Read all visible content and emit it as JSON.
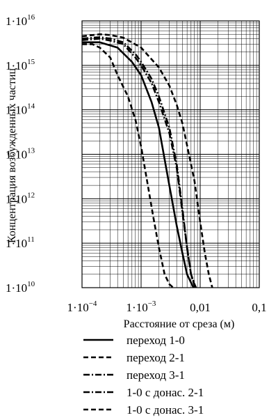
{
  "chart_data": {
    "type": "line",
    "title": "",
    "xlabel": "Расстояние от среза (м)",
    "ylabel": "Концентрация возбужденных частиц",
    "xscale": "log",
    "yscale": "log",
    "xlim": [
      0.0001,
      0.1
    ],
    "ylim": [
      10000000000.0,
      1e+16
    ],
    "grid": "on (major and minor)",
    "legend_position": "below plot",
    "x_ticks": [
      {
        "base": "1·10",
        "exp": "−4",
        "value": 0.0001
      },
      {
        "base": "1·10",
        "exp": "−3",
        "value": 0.001
      },
      {
        "base": "0,01",
        "exp": "",
        "value": 0.01
      },
      {
        "base": "0,1",
        "exp": "",
        "value": 0.1
      }
    ],
    "y_ticks": [
      {
        "base": "1·10",
        "exp": "16",
        "value": 1e+16
      },
      {
        "base": "1·10",
        "exp": "15",
        "value": 1000000000000000.0
      },
      {
        "base": "1·10",
        "exp": "14",
        "value": 100000000000000.0
      },
      {
        "base": "1·10",
        "exp": "13",
        "value": 10000000000000.0
      },
      {
        "base": "1·10",
        "exp": "12",
        "value": 1000000000000.0
      },
      {
        "base": "1·10",
        "exp": "11",
        "value": 100000000000.0
      },
      {
        "base": "1·10",
        "exp": "10",
        "value": 10000000000.0
      }
    ],
    "series": [
      {
        "name": "переход 1-0",
        "dash": "solid",
        "x": [
          0.0001,
          0.0002,
          0.0004,
          0.0007,
          0.001,
          0.0015,
          0.002,
          0.003,
          0.004,
          0.005,
          0.006,
          0.007,
          0.0077
        ],
        "y": [
          3300000000000000.0,
          3300000000000000.0,
          2500000000000000.0,
          1200000000000000.0,
          600000000000000.0,
          150000000000000.0,
          40000000000000.0,
          2000000000000.0,
          250000000000.0,
          60000000000.0,
          20000000000.0,
          13000000000.0,
          10000000000.0
        ]
      },
      {
        "name": "переход 2-1",
        "dash": "dash",
        "x": [
          0.0001,
          0.00015,
          0.0002,
          0.0003,
          0.0004,
          0.0006,
          0.0008,
          0.001,
          0.0013,
          0.0016,
          0.002,
          0.0025,
          0.003,
          0.0035
        ],
        "y": [
          3000000000000000.0,
          3000000000000000.0,
          2500000000000000.0,
          1500000000000000.0,
          600000000000000.0,
          200000000000000.0,
          60000000000000.0,
          15000000000000.0,
          2000000000000.0,
          400000000000.0,
          80000000000.0,
          20000000000.0,
          12000000000.0,
          10000000000.0
        ]
      },
      {
        "name": "переход 3-1",
        "dash": "dashdot",
        "x": [
          0.0001,
          0.0002,
          0.0003,
          0.0005,
          0.0008,
          0.001,
          0.0015,
          0.002,
          0.003,
          0.004,
          0.005,
          0.006,
          0.007,
          0.008,
          0.0085
        ],
        "y": [
          3700000000000000.0,
          4000000000000000.0,
          3600000000000000.0,
          3000000000000000.0,
          1500000000000000.0,
          1000000000000000.0,
          400000000000000.0,
          150000000000000.0,
          30000000000000.0,
          5000000000000.0,
          500000000000.0,
          80000000000.0,
          20000000000.0,
          12000000000.0,
          10000000000.0
        ]
      },
      {
        "name": "1-0 с донас. 2-1",
        "dash": "dashdot",
        "x": [
          0.0001,
          0.0002,
          0.0003,
          0.0005,
          0.0008,
          0.001,
          0.0015,
          0.002,
          0.003,
          0.004,
          0.005,
          0.006,
          0.007,
          0.0082
        ],
        "y": [
          4000000000000000.0,
          4300000000000000.0,
          4000000000000000.0,
          3300000000000000.0,
          1800000000000000.0,
          1200000000000000.0,
          500000000000000.0,
          200000000000000.0,
          40000000000000.0,
          6000000000000.0,
          600000000000.0,
          80000000000.0,
          20000000000.0,
          10000000000.0
        ]
      },
      {
        "name": "1-0 с донас. 3-1",
        "dash": "dash",
        "x": [
          0.0001,
          0.0002,
          0.0003,
          0.0005,
          0.001,
          0.002,
          0.003,
          0.004,
          0.005,
          0.006,
          0.008,
          0.01,
          0.012,
          0.014,
          0.016
        ],
        "y": [
          4500000000000000.0,
          5000000000000000.0,
          4800000000000000.0,
          4200000000000000.0,
          2500000000000000.0,
          900000000000000.0,
          350000000000000.0,
          130000000000000.0,
          50000000000000.0,
          16000000000000.0,
          2500000000000.0,
          300000000000.0,
          60000000000.0,
          20000000000.0,
          10000000000.0
        ]
      }
    ]
  }
}
